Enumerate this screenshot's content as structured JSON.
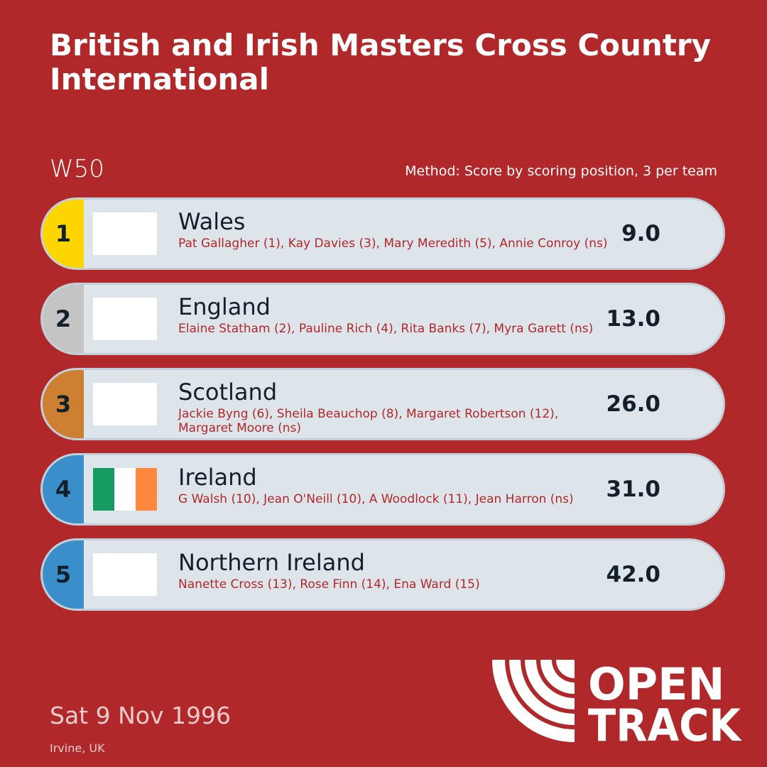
{
  "title": "British and Irish Masters Cross Country International",
  "category": "W50",
  "method": "Method: Score by scoring position, 3 per team",
  "teams": [
    {
      "rank": "1",
      "name": "Wales",
      "members": "Pat Gallagher (1), Kay Davies (3), Mary Meredith (5), Annie Conroy (ns)",
      "score": "9.0",
      "badge_color": "#fdd600",
      "flag": "blank"
    },
    {
      "rank": "2",
      "name": "England",
      "members": "Elaine Statham (2), Pauline Rich (4), Rita Banks (7), Myra Garett (ns)",
      "score": "13.0",
      "badge_color": "#c4c4c4",
      "flag": "blank"
    },
    {
      "rank": "3",
      "name": "Scotland",
      "members": "Jackie Byng (6), Sheila Beauchop (8), Margaret Robertson (12), Margaret Moore (ns)",
      "score": "26.0",
      "badge_color": "#cd7f32",
      "flag": "blank"
    },
    {
      "rank": "4",
      "name": "Ireland",
      "members": "G Walsh (10), Jean O'Neill (10), A Woodlock (11), Jean Harron (ns)",
      "score": "31.0",
      "badge_color": "#3a8fcb",
      "flag": "ireland"
    },
    {
      "rank": "5",
      "name": "Northern Ireland",
      "members": "Nanette Cross (13), Rose Finn (14), Ena Ward (15)",
      "score": "42.0",
      "badge_color": "#3a8fcb",
      "flag": "blank"
    }
  ],
  "date": "Sat 9 Nov 1996",
  "location": "Irvine, UK",
  "logo": {
    "line1": "OPEN",
    "line2": "TRACK"
  },
  "colors": {
    "background": "#b0282a",
    "row": "#dde4ea",
    "ireland_flag": [
      "#169b62",
      "#ffffff",
      "#ff883e"
    ]
  }
}
